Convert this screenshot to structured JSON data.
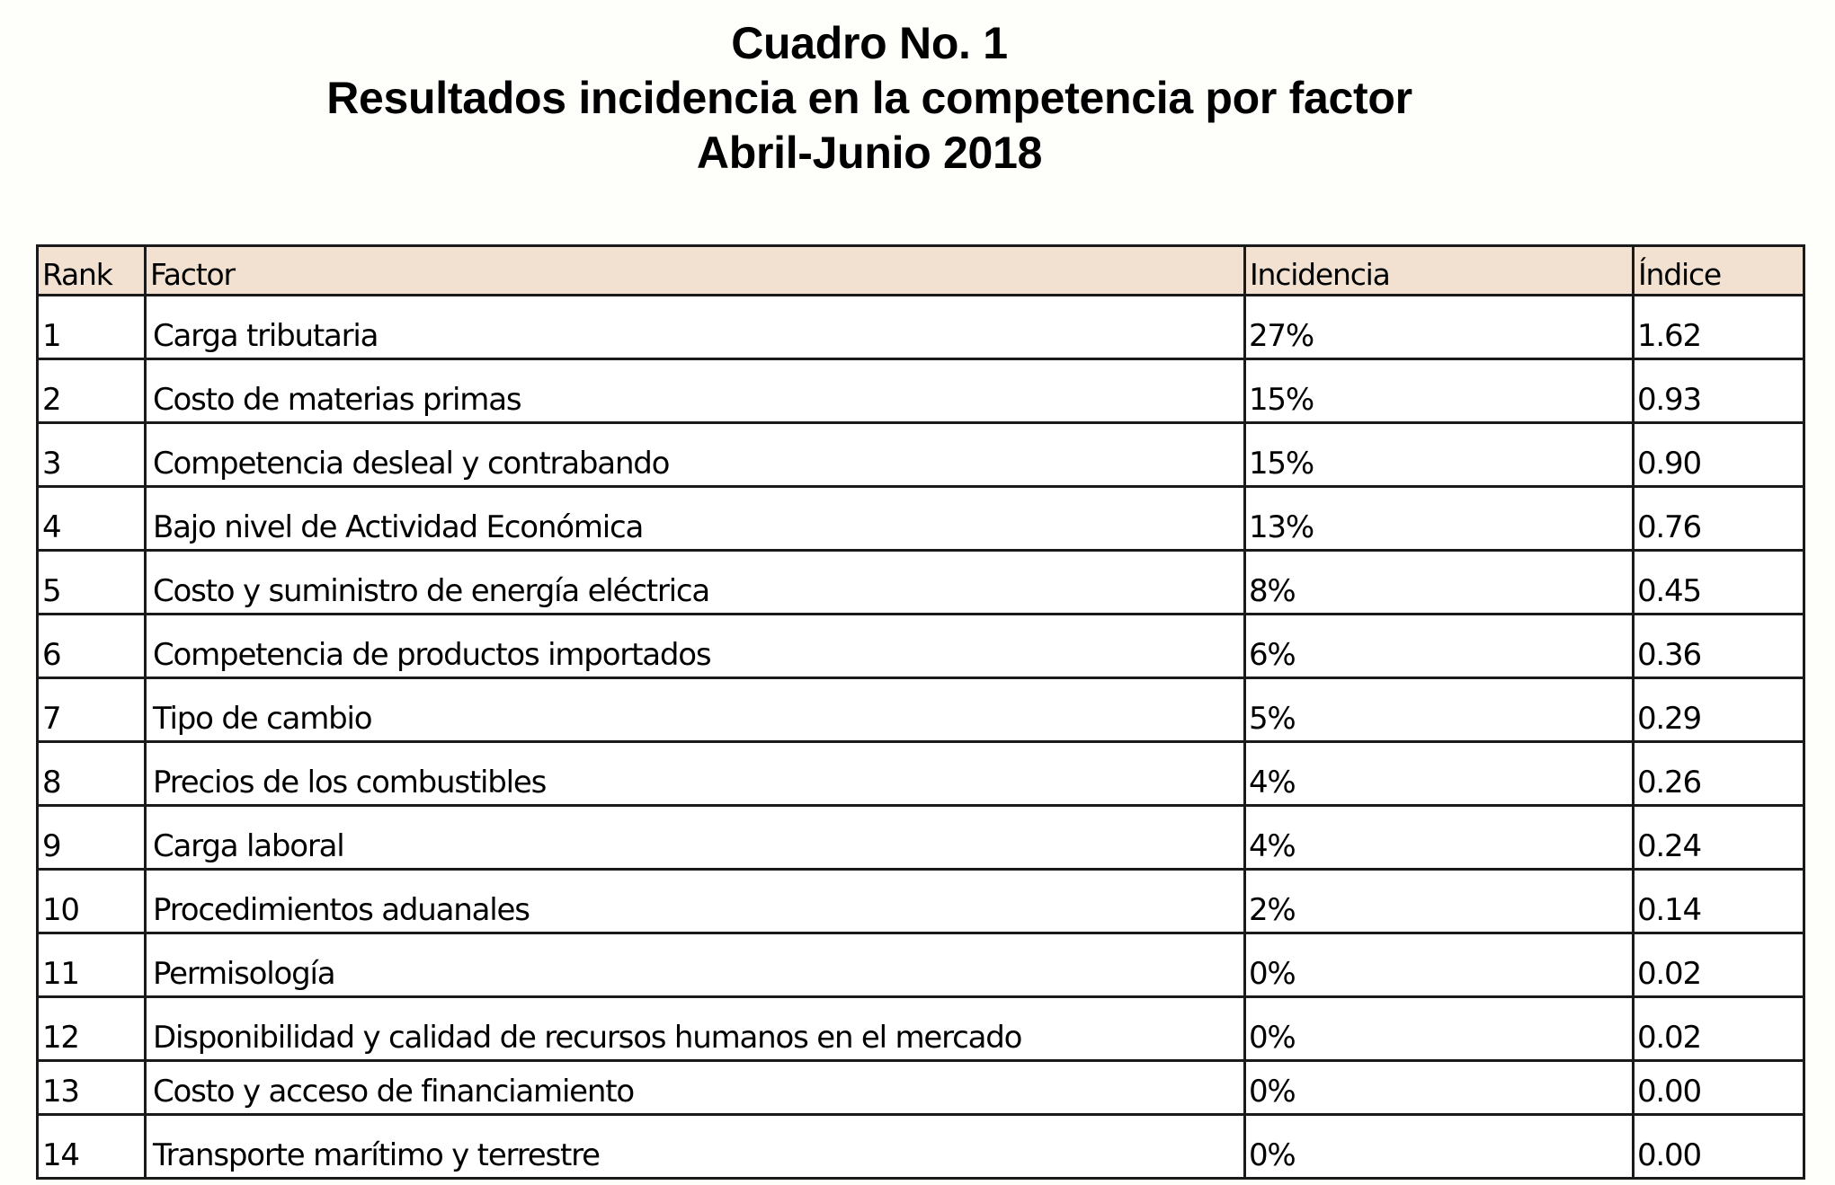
{
  "title": {
    "line1": "Cuadro No. 1",
    "line2": "Resultados incidencia en la competencia por factor",
    "line3": "Abril-Junio 2018"
  },
  "colors": {
    "header_background": "#f2e1d0",
    "page_background": "#fefefb",
    "border": "#1a1a1a"
  },
  "table": {
    "headers": {
      "rank": "Rank",
      "factor": "Factor",
      "incidencia": "Incidencia",
      "indice": "Índice"
    },
    "rows": [
      {
        "rank": "1",
        "factor": "Carga tributaria",
        "incidencia": "27%",
        "indice": "1.62"
      },
      {
        "rank": "2",
        "factor": "Costo de materias primas",
        "incidencia": "15%",
        "indice": "0.93"
      },
      {
        "rank": "3",
        "factor": "Competencia desleal y contrabando",
        "incidencia": "15%",
        "indice": "0.90"
      },
      {
        "rank": "4",
        "factor": "Bajo nivel de Actividad Económica",
        "incidencia": "13%",
        "indice": "0.76"
      },
      {
        "rank": "5",
        "factor": "Costo y suministro de energía eléctrica",
        "incidencia": "8%",
        "indice": "0.45"
      },
      {
        "rank": "6",
        "factor": "Competencia de productos importados",
        "incidencia": "6%",
        "indice": "0.36"
      },
      {
        "rank": "7",
        "factor": "Tipo de cambio",
        "incidencia": "5%",
        "indice": "0.29"
      },
      {
        "rank": "8",
        "factor": "Precios de los combustibles",
        "incidencia": "4%",
        "indice": "0.26"
      },
      {
        "rank": "9",
        "factor": "Carga laboral",
        "incidencia": "4%",
        "indice": "0.24"
      },
      {
        "rank": "10",
        "factor": "Procedimientos aduanales",
        "incidencia": "2%",
        "indice": "0.14"
      },
      {
        "rank": "11",
        "factor": "Permisología",
        "incidencia": "0%",
        "indice": "0.02"
      },
      {
        "rank": "12",
        "factor": "Disponibilidad  y calidad de recursos humanos en el mercado",
        "incidencia": "0%",
        "indice": "0.02"
      },
      {
        "rank": "13",
        "factor": "Costo y acceso de financiamiento",
        "incidencia": "0%",
        "indice": "0.00"
      },
      {
        "rank": "14",
        "factor": "Transporte marítimo y terrestre",
        "incidencia": "0%",
        "indice": "0.00"
      }
    ]
  }
}
